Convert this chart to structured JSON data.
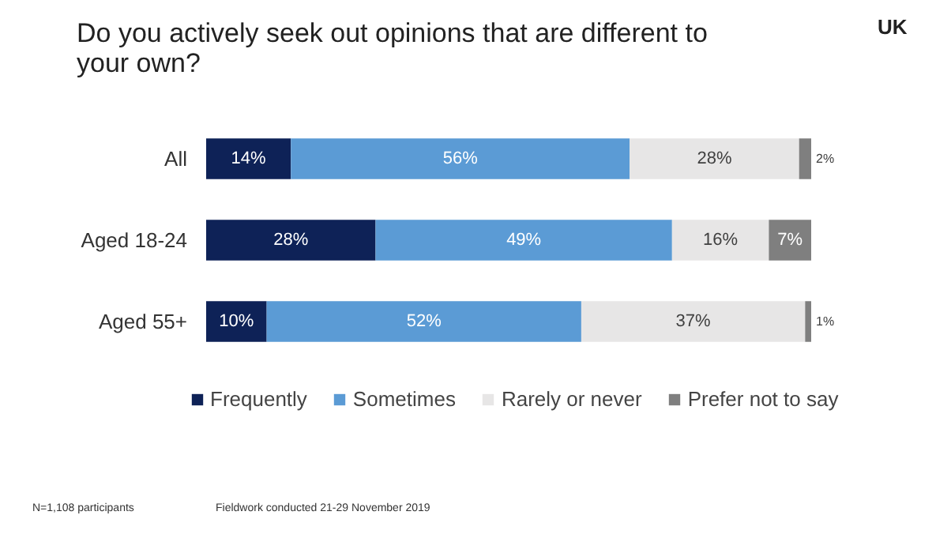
{
  "chart_data": {
    "type": "bar",
    "orientation": "horizontal",
    "stacked": true,
    "legend": "bottom",
    "grid": false,
    "title": "Do you actively seek out opinions that are different to your own?",
    "subtitle": "UK",
    "categories": [
      "All",
      "Aged 18-24",
      "Aged 55+"
    ],
    "series": [
      {
        "name": "Frequently",
        "color": "#0e2257",
        "values": [
          14,
          28,
          10
        ],
        "value_labels": [
          "14%",
          "28%",
          "10%"
        ]
      },
      {
        "name": "Sometimes",
        "color": "#5b9bd5",
        "values": [
          56,
          49,
          52
        ],
        "value_labels": [
          "56%",
          "49%",
          "52%"
        ]
      },
      {
        "name": "Rarely or never",
        "color": "#e7e6e6",
        "values": [
          28,
          16,
          37
        ],
        "value_labels": [
          "28%",
          "16%",
          "37%"
        ]
      },
      {
        "name": "Prefer not to say",
        "color": "#7f7f7f",
        "values": [
          2,
          7,
          1
        ],
        "value_labels": [
          "2%",
          "7%",
          "1%"
        ]
      }
    ],
    "annotations": [
      "N=1,108 participants",
      "Fieldwork conducted 21-29 November 2019"
    ]
  }
}
